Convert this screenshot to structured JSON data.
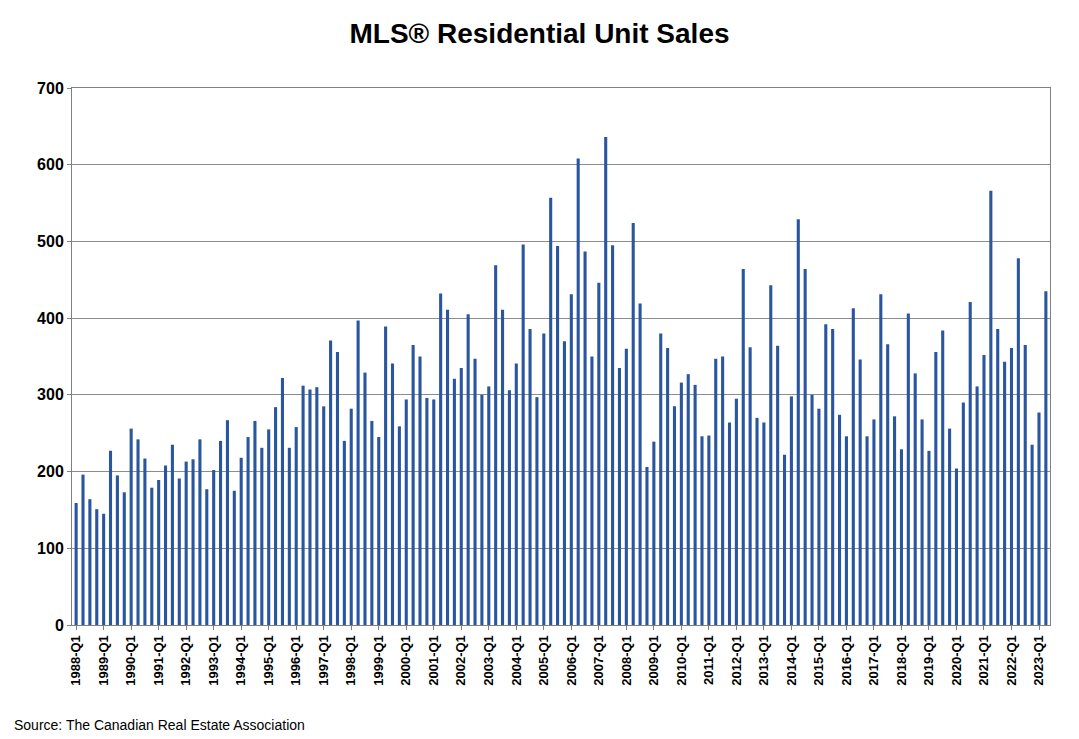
{
  "chart_data": {
    "type": "bar",
    "title": "MLS® Residential Unit Sales",
    "source": "Source: The Canadian Real Estate Association",
    "color": "#2a56a0",
    "grid": true,
    "ylim": [
      0,
      700
    ],
    "yticks": [
      0,
      100,
      200,
      300,
      400,
      500,
      600,
      700
    ],
    "categories": [
      "1988-Q1",
      null,
      null,
      null,
      "1989-Q1",
      null,
      null,
      null,
      "1990-Q1",
      null,
      null,
      null,
      "1991-Q1",
      null,
      null,
      null,
      "1992-Q1",
      null,
      null,
      null,
      "1993-Q1",
      null,
      null,
      null,
      "1994-Q1",
      null,
      null,
      null,
      "1995-Q1",
      null,
      null,
      null,
      "1996-Q1",
      null,
      null,
      null,
      "1997-Q1",
      null,
      null,
      null,
      "1998-Q1",
      null,
      null,
      null,
      "1999-Q1",
      null,
      null,
      null,
      "2000-Q1",
      null,
      null,
      null,
      "2001-Q1",
      null,
      null,
      null,
      "2002-Q1",
      null,
      null,
      null,
      "2003-Q1",
      null,
      null,
      null,
      "2004-Q1",
      null,
      null,
      null,
      "2005-Q1",
      null,
      null,
      null,
      "2006-Q1",
      null,
      null,
      null,
      "2007-Q1",
      null,
      null,
      null,
      "2008-Q1",
      null,
      null,
      null,
      "2009-Q1",
      null,
      null,
      null,
      "2010-Q1",
      null,
      null,
      null,
      "2011-Q1",
      null,
      null,
      null,
      "2012-Q1",
      null,
      null,
      null,
      "2013-Q1",
      null,
      null,
      null,
      "2014-Q1",
      null,
      null,
      null,
      "2015-Q1",
      null,
      null,
      null,
      "2016-Q1",
      null,
      null,
      null,
      "2017-Q1",
      null,
      null,
      null,
      "2018-Q1",
      null,
      null,
      null,
      "2019-Q1",
      null,
      null,
      null,
      "2020-Q1",
      null,
      null,
      null,
      "2021-Q1",
      null,
      null,
      null,
      "2022-Q1",
      null,
      null,
      null,
      "2023-Q1",
      null
    ],
    "values": [
      159,
      196,
      164,
      151,
      145,
      227,
      195,
      173,
      256,
      242,
      217,
      179,
      189,
      208,
      235,
      191,
      213,
      216,
      242,
      177,
      202,
      240,
      267,
      175,
      218,
      245,
      266,
      231,
      255,
      284,
      322,
      231,
      258,
      312,
      307,
      310,
      285,
      371,
      356,
      240,
      282,
      397,
      329,
      266,
      245,
      389,
      341,
      259,
      294,
      365,
      350,
      296,
      294,
      432,
      411,
      321,
      335,
      405,
      347,
      300,
      311,
      469,
      411,
      306,
      341,
      496,
      386,
      297,
      380,
      557,
      494,
      370,
      431,
      608,
      487,
      350,
      446,
      636,
      495,
      335,
      360,
      524,
      419,
      206,
      239,
      380,
      361,
      285,
      316,
      327,
      313,
      246,
      247,
      347,
      350,
      264,
      295,
      464,
      362,
      270,
      264,
      443,
      364,
      222,
      298,
      529,
      464,
      300,
      282,
      392,
      386,
      274,
      246,
      413,
      346,
      246,
      268,
      431,
      366,
      272,
      229,
      406,
      328,
      268,
      227,
      356,
      384,
      256,
      204,
      290,
      421,
      311,
      352,
      566,
      386,
      343,
      361,
      478,
      365,
      235,
      277,
      435
    ]
  }
}
